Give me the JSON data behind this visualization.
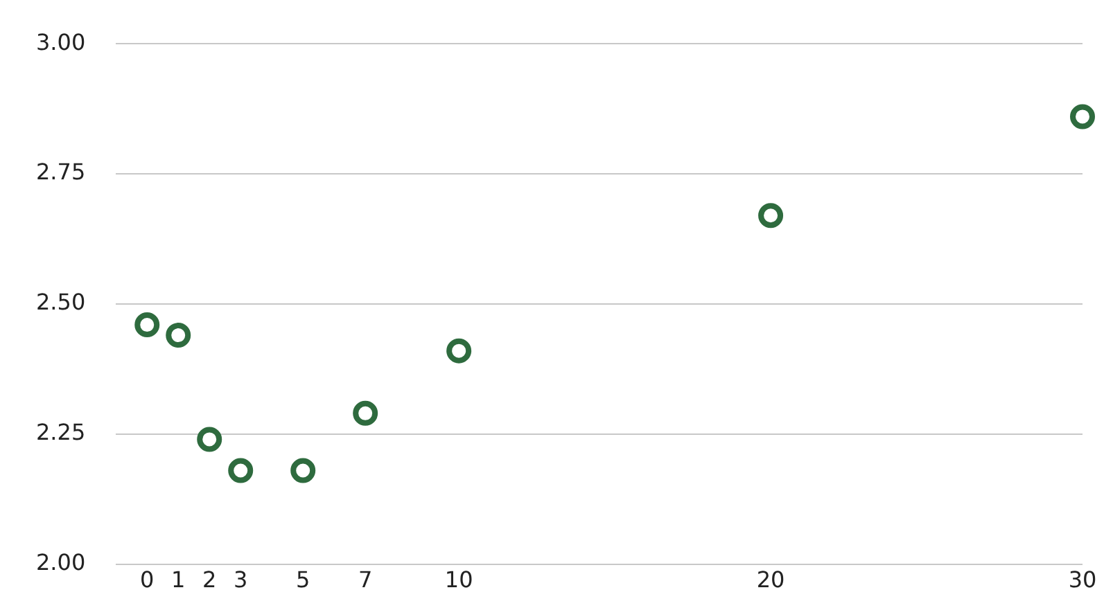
{
  "chart_data": {
    "type": "scatter",
    "x": [
      0,
      1,
      2,
      3,
      5,
      7,
      10,
      20,
      30
    ],
    "values": [
      2.46,
      2.44,
      2.24,
      2.18,
      2.18,
      2.29,
      2.41,
      2.67,
      2.86
    ],
    "color": "#2e6b3e",
    "marker": "circle",
    "xlim": [
      -1,
      30
    ],
    "xticks": [
      0,
      1,
      2,
      3,
      5,
      7,
      10,
      20,
      30
    ],
    "ylim": [
      2,
      3
    ],
    "yticks": [
      {
        "value": 2,
        "label": "2.00"
      },
      {
        "value": 2.25,
        "label": "2.25"
      },
      {
        "value": 2.5,
        "label": "2.50"
      },
      {
        "value": 2.75,
        "label": "2.75"
      },
      {
        "value": 3,
        "label": "3.00"
      }
    ],
    "grid": "y",
    "legend": false
  }
}
